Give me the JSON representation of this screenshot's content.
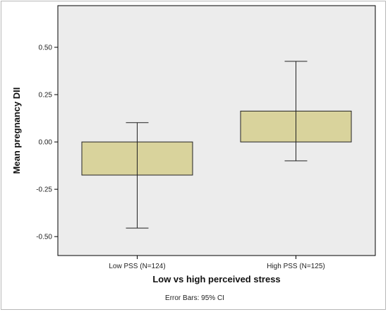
{
  "chart_data": {
    "type": "bar",
    "categories": [
      "Low PSS (N=124)",
      "High PSS (N=125)"
    ],
    "values": [
      -0.175,
      0.163
    ],
    "error_bars": [
      {
        "lower": -0.455,
        "upper": 0.102
      },
      {
        "lower": -0.1,
        "upper": 0.426
      }
    ],
    "ylabel": "Mean pregnancy DII",
    "xlabel": "Low vs high perceived stress",
    "yticks": [
      0.5,
      0.25,
      0.0,
      -0.25,
      -0.5
    ],
    "ytick_labels": [
      "0.50",
      "0.25",
      "0.00",
      "-0.25",
      "-0.50"
    ],
    "ylim": [
      -0.6,
      0.72
    ],
    "grid": false,
    "bar_color": "#d9d39c",
    "plot_bg": "#ececec",
    "footnote": "Error Bars: 95% CI"
  }
}
